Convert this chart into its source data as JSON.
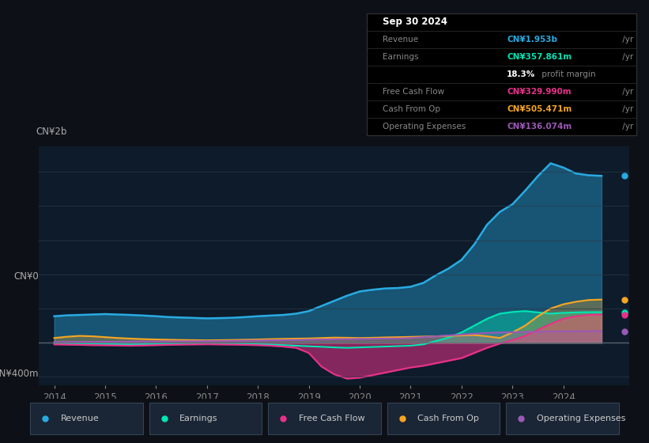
{
  "bg_color": "#0d1117",
  "plot_bg_color": "#0d1b2a",
  "colors": {
    "revenue": "#29aae1",
    "earnings": "#00e5b4",
    "free_cash_flow": "#e8318a",
    "cash_from_op": "#f5a623",
    "operating_expenses": "#9b59b6"
  },
  "info_box": {
    "title": "Sep 30 2024",
    "revenue_label": "Revenue",
    "revenue_value": "CN¥1.953b",
    "revenue_suffix": " /yr",
    "earnings_label": "Earnings",
    "earnings_value": "CN¥357.861m",
    "earnings_suffix": " /yr",
    "profit_margin": "18.3%",
    "profit_margin_text": " profit margin",
    "fcf_label": "Free Cash Flow",
    "fcf_value": "CN¥329.990m",
    "fcf_suffix": " /yr",
    "cop_label": "Cash From Op",
    "cop_value": "CN¥505.471m",
    "cop_suffix": " /yr",
    "opex_label": "Operating Expenses",
    "opex_value": "CN¥136.074m",
    "opex_suffix": " /yr"
  },
  "x_years": [
    2014.0,
    2014.25,
    2014.5,
    2014.75,
    2015.0,
    2015.25,
    2015.5,
    2015.75,
    2016.0,
    2016.25,
    2016.5,
    2016.75,
    2017.0,
    2017.25,
    2017.5,
    2017.75,
    2018.0,
    2018.25,
    2018.5,
    2018.75,
    2019.0,
    2019.25,
    2019.5,
    2019.75,
    2020.0,
    2020.25,
    2020.5,
    2020.75,
    2021.0,
    2021.25,
    2021.5,
    2021.75,
    2022.0,
    2022.25,
    2022.5,
    2022.75,
    2023.0,
    2023.25,
    2023.5,
    2023.75,
    2024.0,
    2024.25,
    2024.5,
    2024.75
  ],
  "revenue": [
    310,
    320,
    325,
    330,
    335,
    330,
    325,
    318,
    310,
    300,
    295,
    290,
    285,
    288,
    292,
    300,
    310,
    318,
    325,
    340,
    370,
    430,
    490,
    550,
    600,
    620,
    635,
    640,
    655,
    700,
    790,
    870,
    970,
    1150,
    1380,
    1530,
    1620,
    1780,
    1950,
    2100,
    2050,
    1980,
    1960,
    1953
  ],
  "earnings": [
    -5,
    -8,
    -10,
    -12,
    -15,
    -18,
    -20,
    -18,
    -15,
    -12,
    -10,
    -8,
    -8,
    -10,
    -12,
    -15,
    -18,
    -22,
    -28,
    -35,
    -42,
    -48,
    -55,
    -60,
    -55,
    -50,
    -45,
    -40,
    -35,
    -20,
    20,
    60,
    120,
    200,
    280,
    340,
    360,
    370,
    355,
    340,
    350,
    355,
    358,
    358
  ],
  "free_cash_flow": [
    -20,
    -22,
    -25,
    -28,
    -30,
    -32,
    -35,
    -32,
    -28,
    -25,
    -22,
    -20,
    -18,
    -20,
    -22,
    -25,
    -28,
    -35,
    -45,
    -60,
    -120,
    -280,
    -370,
    -420,
    -410,
    -380,
    -350,
    -320,
    -290,
    -270,
    -240,
    -210,
    -180,
    -120,
    -60,
    -10,
    30,
    80,
    150,
    220,
    280,
    310,
    325,
    330
  ],
  "cash_from_op": [
    55,
    70,
    80,
    75,
    65,
    55,
    48,
    42,
    38,
    35,
    32,
    30,
    28,
    30,
    32,
    35,
    38,
    42,
    45,
    48,
    50,
    55,
    60,
    58,
    55,
    58,
    62,
    65,
    68,
    72,
    75,
    80,
    85,
    90,
    75,
    55,
    120,
    200,
    310,
    400,
    450,
    480,
    500,
    505
  ],
  "operating_expenses": [
    8,
    9,
    10,
    10,
    11,
    12,
    13,
    14,
    15,
    16,
    17,
    18,
    19,
    20,
    22,
    24,
    26,
    28,
    30,
    32,
    35,
    37,
    40,
    42,
    44,
    46,
    48,
    50,
    55,
    65,
    75,
    85,
    95,
    105,
    115,
    120,
    122,
    125,
    128,
    130,
    132,
    133,
    135,
    136
  ],
  "x_ticks": [
    2014,
    2015,
    2016,
    2017,
    2018,
    2019,
    2020,
    2021,
    2022,
    2023,
    2024
  ],
  "ylim": [
    -500,
    2300
  ],
  "y_gridlines": [
    -400,
    0,
    400,
    800,
    1200,
    1600,
    2000
  ],
  "legend_labels": [
    "Revenue",
    "Earnings",
    "Free Cash Flow",
    "Cash From Op",
    "Operating Expenses"
  ]
}
